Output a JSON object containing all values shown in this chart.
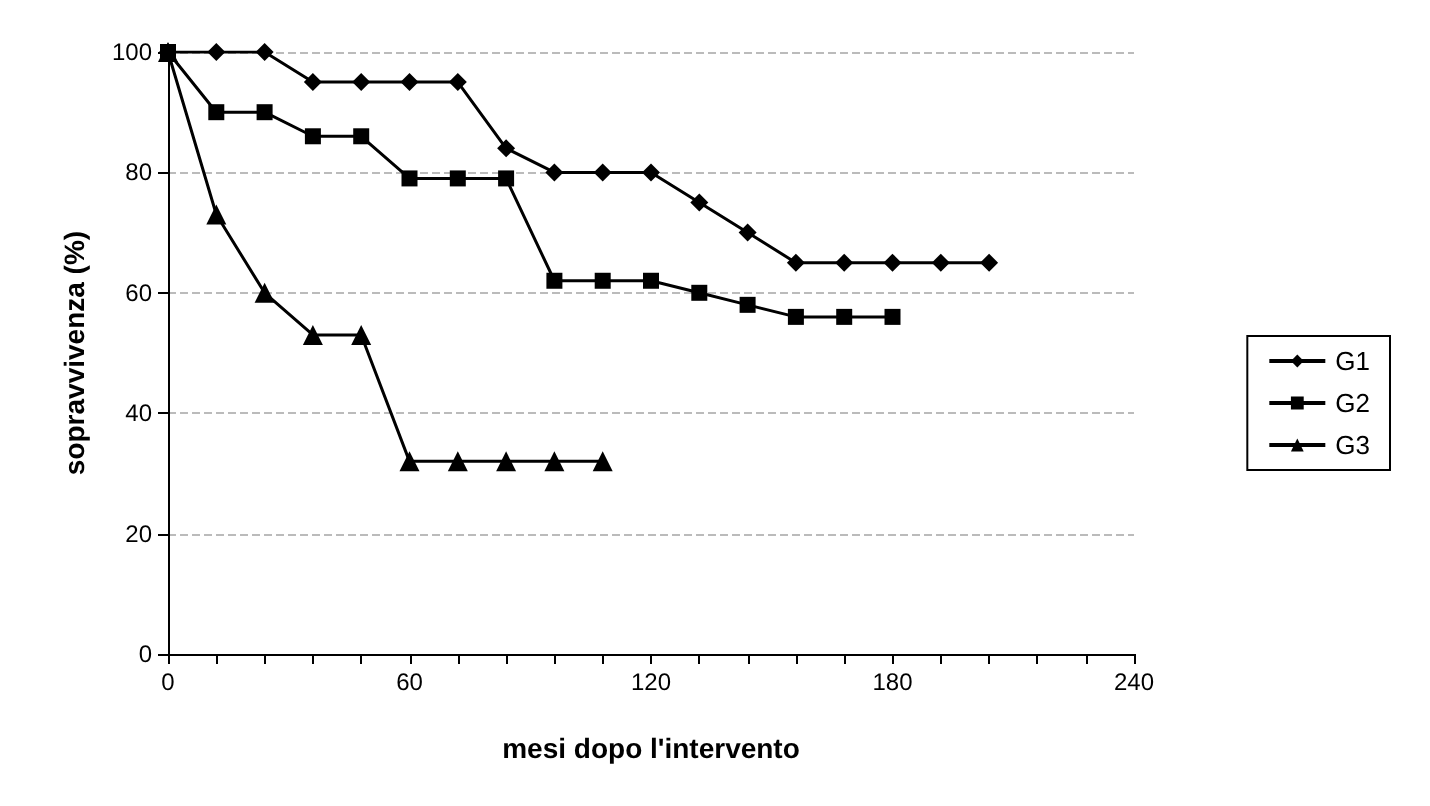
{
  "chart_data": {
    "type": "line",
    "xlabel": "mesi dopo l'intervento",
    "ylabel": "sopravvivenza (%)",
    "x": [
      0,
      12,
      24,
      36,
      48,
      60,
      72,
      84,
      96,
      108,
      120,
      132,
      144,
      156,
      168,
      180,
      192,
      204
    ],
    "series": [
      {
        "name": "G1",
        "color": "#000000",
        "marker": "diamond",
        "values": [
          100,
          100,
          100,
          95,
          95,
          95,
          95,
          84,
          80,
          80,
          80,
          75,
          70,
          65,
          65,
          65,
          65,
          65
        ]
      },
      {
        "name": "G2",
        "color": "#000000",
        "marker": "square",
        "values": [
          100,
          90,
          90,
          86,
          86,
          79,
          79,
          79,
          62,
          62,
          62,
          60,
          58,
          56,
          56,
          56,
          null,
          null
        ]
      },
      {
        "name": "G3",
        "color": "#000000",
        "marker": "triangle",
        "values": [
          100,
          73,
          60,
          53,
          53,
          32,
          32,
          32,
          32,
          32,
          null,
          null,
          null,
          null,
          null,
          null,
          null,
          null
        ]
      }
    ],
    "xlim": [
      0,
      240
    ],
    "xticks": [
      0,
      {
        "value": 12,
        "label": null
      },
      {
        "value": 24,
        "label": null
      },
      {
        "value": 36,
        "label": null
      },
      {
        "value": 48,
        "label": null
      },
      60,
      {
        "value": 72,
        "label": null
      },
      {
        "value": 84,
        "label": null
      },
      {
        "value": 96,
        "label": null
      },
      {
        "value": 108,
        "label": null
      },
      120,
      {
        "value": 132,
        "label": null
      },
      {
        "value": 144,
        "label": null
      },
      {
        "value": 156,
        "label": null
      },
      {
        "value": 168,
        "label": null
      },
      180,
      {
        "value": 192,
        "label": null
      },
      {
        "value": 204,
        "label": null
      },
      {
        "value": 216,
        "label": null
      },
      {
        "value": 228,
        "label": null
      },
      240
    ],
    "ylim": [
      0,
      100
    ],
    "yticks": [
      0,
      20,
      40,
      60,
      80,
      100
    ],
    "grid": "y",
    "legend": "right",
    "line_style": "solid"
  }
}
